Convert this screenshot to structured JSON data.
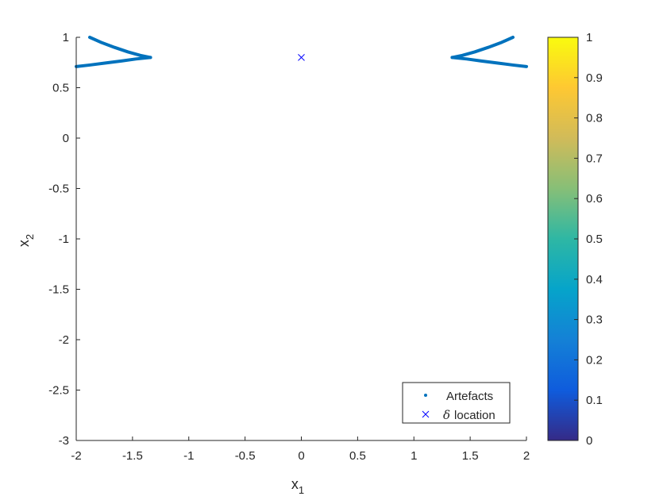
{
  "chart_data": {
    "type": "scatter",
    "xlabel": "x",
    "xlabel_sub": "1",
    "ylabel": "x",
    "ylabel_sub": "2",
    "xlim": [
      -2,
      2
    ],
    "ylim": [
      -3,
      1
    ],
    "xticks": [
      -2,
      -1.5,
      -1,
      -0.5,
      0,
      0.5,
      1,
      1.5,
      2
    ],
    "yticks": [
      -3,
      -2.5,
      -2,
      -1.5,
      -1,
      -0.5,
      0,
      0.5,
      1
    ],
    "xtick_labels": [
      "-2",
      "-1.5",
      "-1",
      "-0.5",
      "0",
      "0.5",
      "1",
      "1.5",
      "2"
    ],
    "ytick_labels": [
      "-3",
      "-2.5",
      "-2",
      "-1.5",
      "-1",
      "-0.5",
      "0",
      "0.5",
      "1"
    ],
    "grid": false,
    "series": [
      {
        "name": "Artefacts",
        "marker": "dot",
        "color": "#0072bd",
        "curves": [
          [
            [
              -1.88,
              1.0
            ],
            [
              -1.78,
              0.95
            ],
            [
              -1.66,
              0.9
            ],
            [
              -1.54,
              0.855
            ],
            [
              -1.43,
              0.82
            ],
            [
              -1.34,
              0.8
            ]
          ],
          [
            [
              -2.0,
              0.71
            ],
            [
              -1.88,
              0.725
            ],
            [
              -1.74,
              0.745
            ],
            [
              -1.6,
              0.765
            ],
            [
              -1.47,
              0.785
            ],
            [
              -1.34,
              0.8
            ]
          ],
          [
            [
              1.88,
              1.0
            ],
            [
              1.78,
              0.95
            ],
            [
              1.66,
              0.9
            ],
            [
              1.54,
              0.855
            ],
            [
              1.43,
              0.82
            ],
            [
              1.34,
              0.8
            ]
          ],
          [
            [
              2.0,
              0.71
            ],
            [
              1.88,
              0.725
            ],
            [
              1.74,
              0.745
            ],
            [
              1.6,
              0.765
            ],
            [
              1.47,
              0.785
            ],
            [
              1.34,
              0.8
            ]
          ]
        ]
      },
      {
        "name": "δ location",
        "name_symbol": "δ",
        "name_text": "location",
        "marker": "x",
        "color": "#0000ff",
        "points": [
          [
            0,
            0.8
          ]
        ]
      }
    ],
    "legend": {
      "position": "bottom-right"
    },
    "colorbar": {
      "range": [
        0,
        1
      ],
      "ticks": [
        0,
        0.1,
        0.2,
        0.3,
        0.4,
        0.5,
        0.6,
        0.7,
        0.8,
        0.9,
        1
      ],
      "tick_labels": [
        "0",
        "0.1",
        "0.2",
        "0.3",
        "0.4",
        "0.5",
        "0.6",
        "0.7",
        "0.8",
        "0.9",
        "1"
      ],
      "colormap": "parula",
      "colors": [
        "#352a87",
        "#0f5cdd",
        "#1481d6",
        "#06a4ca",
        "#2eb7a4",
        "#87bf77",
        "#d1bb59",
        "#fec832",
        "#f9fb0e"
      ]
    }
  }
}
